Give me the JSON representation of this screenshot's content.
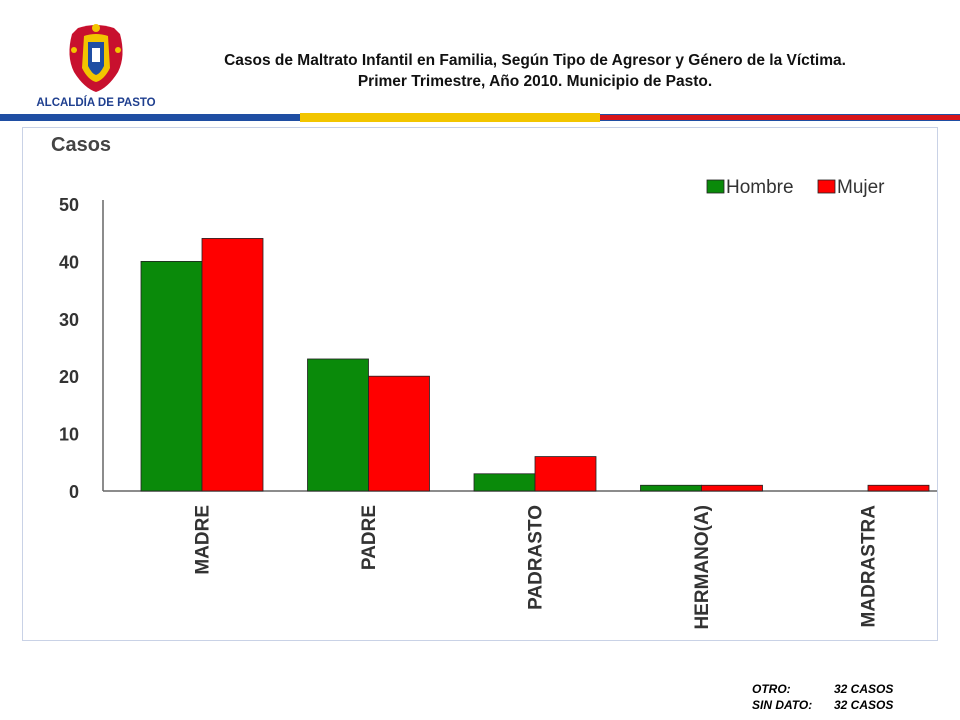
{
  "logo": {
    "text": "ALCALDÍA DE PASTO"
  },
  "header": {
    "title_line1": "Casos de Maltrato Infantil en Familia, Según Tipo de Agresor y Género de la Víctima.",
    "title_line2": "Primer Trimestre, Año 2010. Municipio de Pasto."
  },
  "chart_data": {
    "type": "bar",
    "ylabel": "Casos",
    "xlabel": "",
    "ylim": [
      0,
      50
    ],
    "yticks": [
      0,
      10,
      20,
      30,
      40,
      50
    ],
    "categories": [
      "MADRE",
      "PADRE",
      "PADRASTO",
      "HERMANO(A)",
      "MADRASTRA"
    ],
    "series": [
      {
        "name": "Hombre",
        "color": "#0a8a0a",
        "values": [
          40,
          23,
          3,
          1,
          0
        ]
      },
      {
        "name": "Mujer",
        "color": "#ff0000",
        "values": [
          44,
          20,
          6,
          1,
          1
        ]
      }
    ],
    "legend_position": "top-right",
    "grid": false
  },
  "footnote": {
    "rows": [
      {
        "label": "OTRO:",
        "value": "32 CASOS"
      },
      {
        "label": "SIN DATO:",
        "value": "32 CASOS"
      }
    ]
  },
  "colors": {
    "band_blue": "#1f4ea3",
    "band_yellow": "#f2c500",
    "band_red": "#d7141a",
    "logo_red": "#c8102e"
  }
}
